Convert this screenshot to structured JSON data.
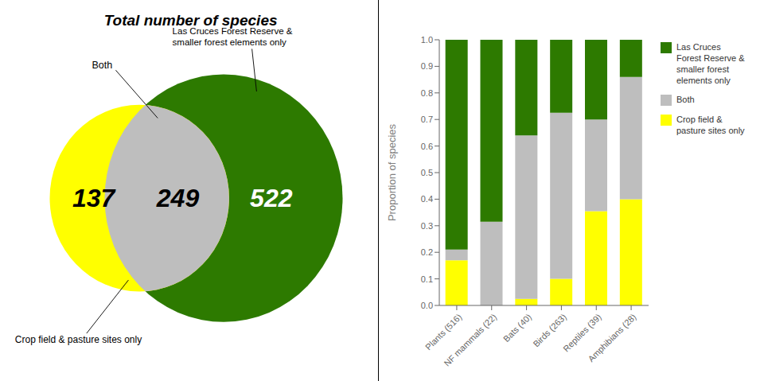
{
  "chart_data": [
    {
      "type": "venn",
      "title": "Total number of species",
      "categories": [
        "Crop field & pasture sites only",
        "Both",
        "Las Cruces Forest Reserve &\nsmaller forest elements only"
      ],
      "values": [
        137,
        249,
        522
      ],
      "colors": [
        "#FFFF00",
        "#BEBEBE",
        "#2D7A00"
      ]
    },
    {
      "type": "bar",
      "stacked": true,
      "categories": [
        "Plants (516)",
        "NF mammals (22)",
        "Bats (40)",
        "Birds (263)",
        "Reptiles (39)",
        "Amphibians (28)"
      ],
      "series": [
        {
          "name": "Crop field &\npasture sites only",
          "color": "#FFFF00",
          "values": [
            0.17,
            0.0,
            0.025,
            0.1,
            0.355,
            0.4
          ]
        },
        {
          "name": "Both",
          "color": "#BEBEBE",
          "values": [
            0.04,
            0.315,
            0.615,
            0.625,
            0.345,
            0.46
          ]
        },
        {
          "name": "Las Cruces\nForest Reserve &\nsmaller forest\nelements only",
          "color": "#2D7A00",
          "values": [
            0.79,
            0.685,
            0.36,
            0.275,
            0.3,
            0.14
          ]
        }
      ],
      "ylabel": "Proportion of species",
      "ylim": [
        0,
        1.0
      ],
      "yticks": [
        {
          "value": 0,
          "label": "0.0"
        },
        0.1,
        0.2,
        0.3,
        0.4,
        0.5,
        0.6,
        0.7,
        0.8,
        0.9,
        {
          "value": 1,
          "label": "1.0"
        }
      ],
      "grid": false,
      "legend": "right"
    }
  ]
}
